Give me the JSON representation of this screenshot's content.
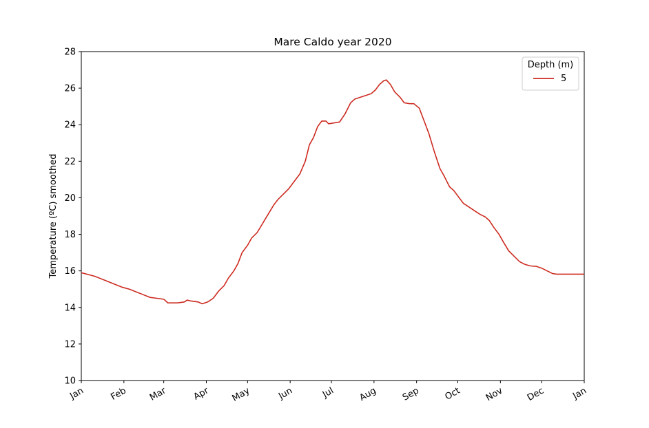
{
  "chart_data": {
    "type": "line",
    "title": "Mare Caldo year 2020",
    "y_label": "Temperature (ºC) smoothed",
    "legend_title": "Depth (m)",
    "legend_loc": "upper right",
    "grid": false,
    "xlim": [
      0,
      366
    ],
    "xticks": [
      {
        "value": 0,
        "label": "Jan"
      },
      {
        "value": 31,
        "label": "Feb"
      },
      {
        "value": 60,
        "label": "Mar"
      },
      {
        "value": 91,
        "label": "Apr"
      },
      {
        "value": 121,
        "label": "May"
      },
      {
        "value": 152,
        "label": "Jun"
      },
      {
        "value": 182,
        "label": "Jul"
      },
      {
        "value": 213,
        "label": "Aug"
      },
      {
        "value": 244,
        "label": "Sep"
      },
      {
        "value": 274,
        "label": "Oct"
      },
      {
        "value": 305,
        "label": "Nov"
      },
      {
        "value": 335,
        "label": "Dec"
      },
      {
        "value": 366,
        "label": "Jan"
      }
    ],
    "ylim": [
      10,
      28
    ],
    "yticks": [
      10,
      12,
      14,
      16,
      18,
      20,
      22,
      24,
      26,
      28
    ],
    "x": [
      0,
      10,
      20,
      25,
      30,
      35,
      40,
      45,
      50,
      55,
      60,
      63,
      70,
      75,
      77,
      80,
      85,
      88,
      92,
      96,
      100,
      104,
      107,
      111,
      114,
      117,
      121,
      124,
      128,
      132,
      136,
      140,
      143,
      147,
      151,
      155,
      159,
      163,
      166,
      169,
      172,
      175,
      178,
      180,
      184,
      188,
      192,
      196,
      199,
      203,
      207,
      211,
      214,
      217,
      220,
      222,
      225,
      228,
      232,
      235,
      239,
      242,
      246,
      249,
      253,
      257,
      261,
      264,
      268,
      271,
      275,
      278,
      282,
      286,
      290,
      294,
      297,
      300,
      304,
      307,
      311,
      315,
      319,
      323,
      327,
      331,
      335,
      339,
      343,
      346,
      366
    ],
    "series": [
      {
        "name": "5",
        "color": "#cc2a1f",
        "values": [
          15.9,
          15.7,
          15.4,
          15.25,
          15.1,
          15.0,
          14.85,
          14.7,
          14.55,
          14.5,
          14.45,
          14.25,
          14.25,
          14.3,
          14.4,
          14.35,
          14.3,
          14.2,
          14.3,
          14.5,
          14.9,
          15.2,
          15.6,
          16.0,
          16.4,
          17.0,
          17.4,
          17.8,
          18.1,
          18.6,
          19.1,
          19.6,
          19.9,
          20.2,
          20.5,
          20.9,
          21.3,
          22.0,
          22.9,
          23.3,
          23.9,
          24.2,
          24.2,
          24.05,
          24.1,
          24.15,
          24.6,
          25.2,
          25.4,
          25.5,
          25.6,
          25.7,
          25.9,
          26.2,
          26.4,
          26.45,
          26.2,
          25.8,
          25.5,
          25.2,
          25.15,
          25.15,
          24.9,
          24.3,
          23.5,
          22.5,
          21.6,
          21.2,
          20.6,
          20.4,
          20.0,
          19.7,
          19.5,
          19.3,
          19.1,
          18.95,
          18.75,
          18.4,
          18.0,
          17.6,
          17.1,
          16.8,
          16.5,
          16.35,
          16.27,
          16.25,
          16.15,
          16.0,
          15.85,
          15.82,
          15.82
        ]
      }
    ]
  }
}
